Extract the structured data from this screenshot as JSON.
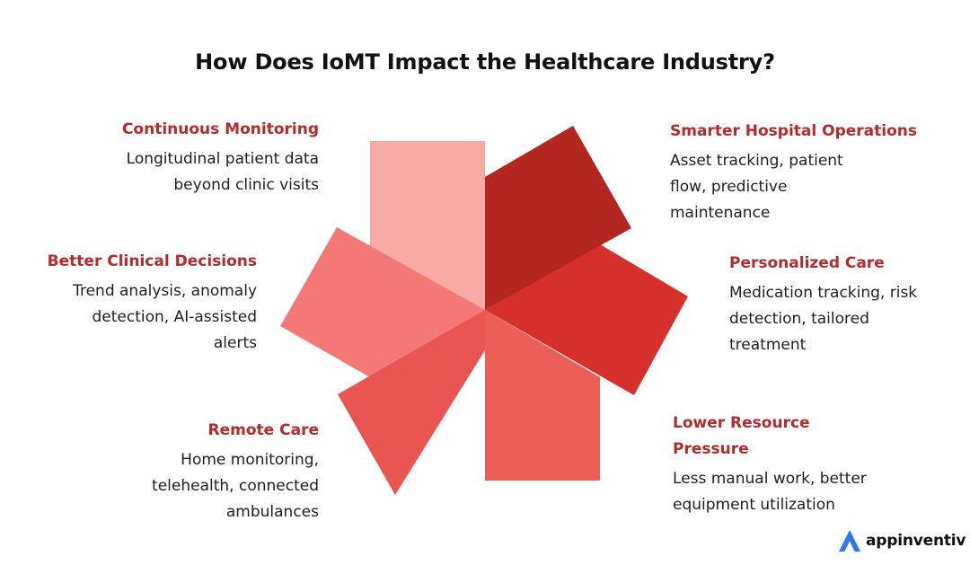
{
  "title": "How Does IoMT Impact the Healthcare Industry?",
  "colors": {
    "heading": "#b52a2a",
    "petal_continuous": "#f8aaa4",
    "petal_smarter": "#b42620",
    "petal_personalized": "#d6302c",
    "petal_lower": "#ec5f57",
    "petal_remote": "#e95651",
    "petal_better": "#f37876",
    "logo_blue": "#2d7be6"
  },
  "items": {
    "continuous": {
      "heading": "Continuous Monitoring",
      "lines": [
        "Longitudinal patient data",
        "beyond clinic visits"
      ]
    },
    "better": {
      "heading": "Better Clinical Decisions",
      "lines": [
        "Trend analysis, anomaly",
        "detection, AI-assisted",
        "alerts"
      ]
    },
    "remote": {
      "heading": "Remote Care",
      "lines": [
        "Home monitoring,",
        "telehealth, connected",
        "ambulances"
      ]
    },
    "smarter": {
      "heading": "Smarter Hospital Operations",
      "lines": [
        "Asset tracking, patient",
        "flow, predictive",
        "maintenance"
      ]
    },
    "personalized": {
      "heading": "Personalized Care",
      "lines": [
        "Medication tracking, risk",
        "detection, tailored",
        "treatment"
      ]
    },
    "lower": {
      "heading_lines": [
        "Lower Resource",
        "Pressure"
      ],
      "lines": [
        "Less manual work, better",
        "equipment utilization"
      ]
    }
  },
  "logo": {
    "icon": "appinventiv-logo-icon",
    "text": "appinventiv"
  }
}
